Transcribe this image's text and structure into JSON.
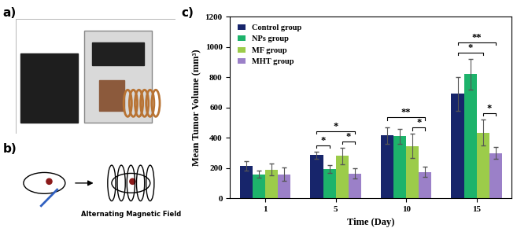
{
  "panel_labels": [
    "a)",
    "b)",
    "c)"
  ],
  "diagram": {
    "label": "Alternating Magnetic Field"
  },
  "chart_data": {
    "type": "bar",
    "x_label": "Time (Day)",
    "y_label": "Mean Tumor Volume (mm³)",
    "categories": [
      "1",
      "5",
      "10",
      "15"
    ],
    "series": [
      {
        "name": "Control group",
        "color": "#17256b",
        "values": [
          215,
          285,
          415,
          690
        ],
        "errors": [
          30,
          25,
          55,
          110
        ]
      },
      {
        "name": "NPs group",
        "color": "#1db36b",
        "values": [
          160,
          195,
          410,
          820
        ],
        "errors": [
          25,
          25,
          50,
          100
        ]
      },
      {
        "name": "MF group",
        "color": "#9ccc4a",
        "values": [
          190,
          280,
          345,
          435
        ],
        "errors": [
          40,
          55,
          80,
          85
        ]
      },
      {
        "name": "MHT group",
        "color": "#9b80c8",
        "values": [
          160,
          165,
          175,
          300
        ],
        "errors": [
          45,
          35,
          35,
          40
        ]
      }
    ],
    "significance": [
      {
        "category": "5",
        "from": "Control group",
        "to": "NPs group",
        "label": "*"
      },
      {
        "category": "5",
        "from": "MF group",
        "to": "MHT group",
        "label": "*"
      },
      {
        "category": "5",
        "from": "Control group",
        "to": "MHT group",
        "label": "*"
      },
      {
        "category": "10",
        "from": "MF group",
        "to": "MHT group",
        "label": "*"
      },
      {
        "category": "10",
        "from": "Control group",
        "to": "MHT group",
        "label": "**"
      },
      {
        "category": "15",
        "from": "MF group",
        "to": "MHT group",
        "label": "*"
      },
      {
        "category": "15",
        "from": "Control group",
        "to": "MF group",
        "label": "*"
      },
      {
        "category": "15",
        "from": "Control group",
        "to": "MHT group",
        "label": "**"
      }
    ],
    "ylim": [
      0,
      1200
    ],
    "yticks": [
      0,
      200,
      400,
      600,
      800,
      1000,
      1200
    ],
    "legend": "upper left",
    "grid": false
  }
}
